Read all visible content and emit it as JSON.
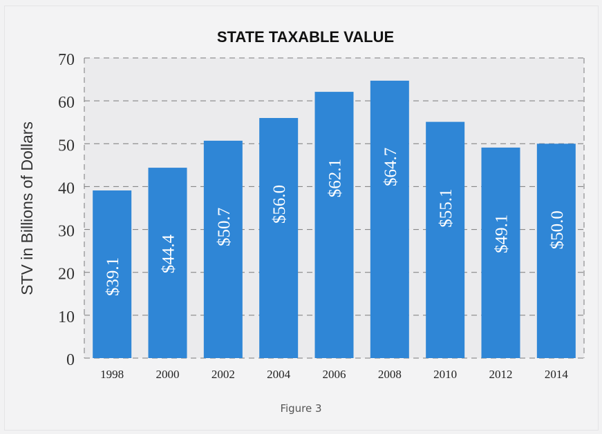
{
  "chart_data": {
    "type": "bar",
    "title": "STATE TAXABLE VALUE",
    "xlabel": "",
    "ylabel": "STV in Billions of Dollars",
    "categories": [
      "1998",
      "2000",
      "2002",
      "2004",
      "2006",
      "2008",
      "2010",
      "2012",
      "2014"
    ],
    "values": [
      39.1,
      44.4,
      50.7,
      56.0,
      62.1,
      64.7,
      55.1,
      49.1,
      50.0
    ],
    "data_labels": [
      "$39.1",
      "$44.4",
      "$50.7",
      "$56.0",
      "$62.1",
      "$64.7",
      "$55.1",
      "$49.1",
      "$50.0"
    ],
    "ylim": [
      0,
      70
    ],
    "yticks": [
      "0",
      "10",
      "20",
      "30",
      "40",
      "50",
      "60",
      "70"
    ],
    "grid": true,
    "legend": "none",
    "colors": {
      "bar": "#2f86d6",
      "plot_bg": "#ebebed",
      "label": "#ffffff"
    }
  },
  "caption": "Figure 3"
}
